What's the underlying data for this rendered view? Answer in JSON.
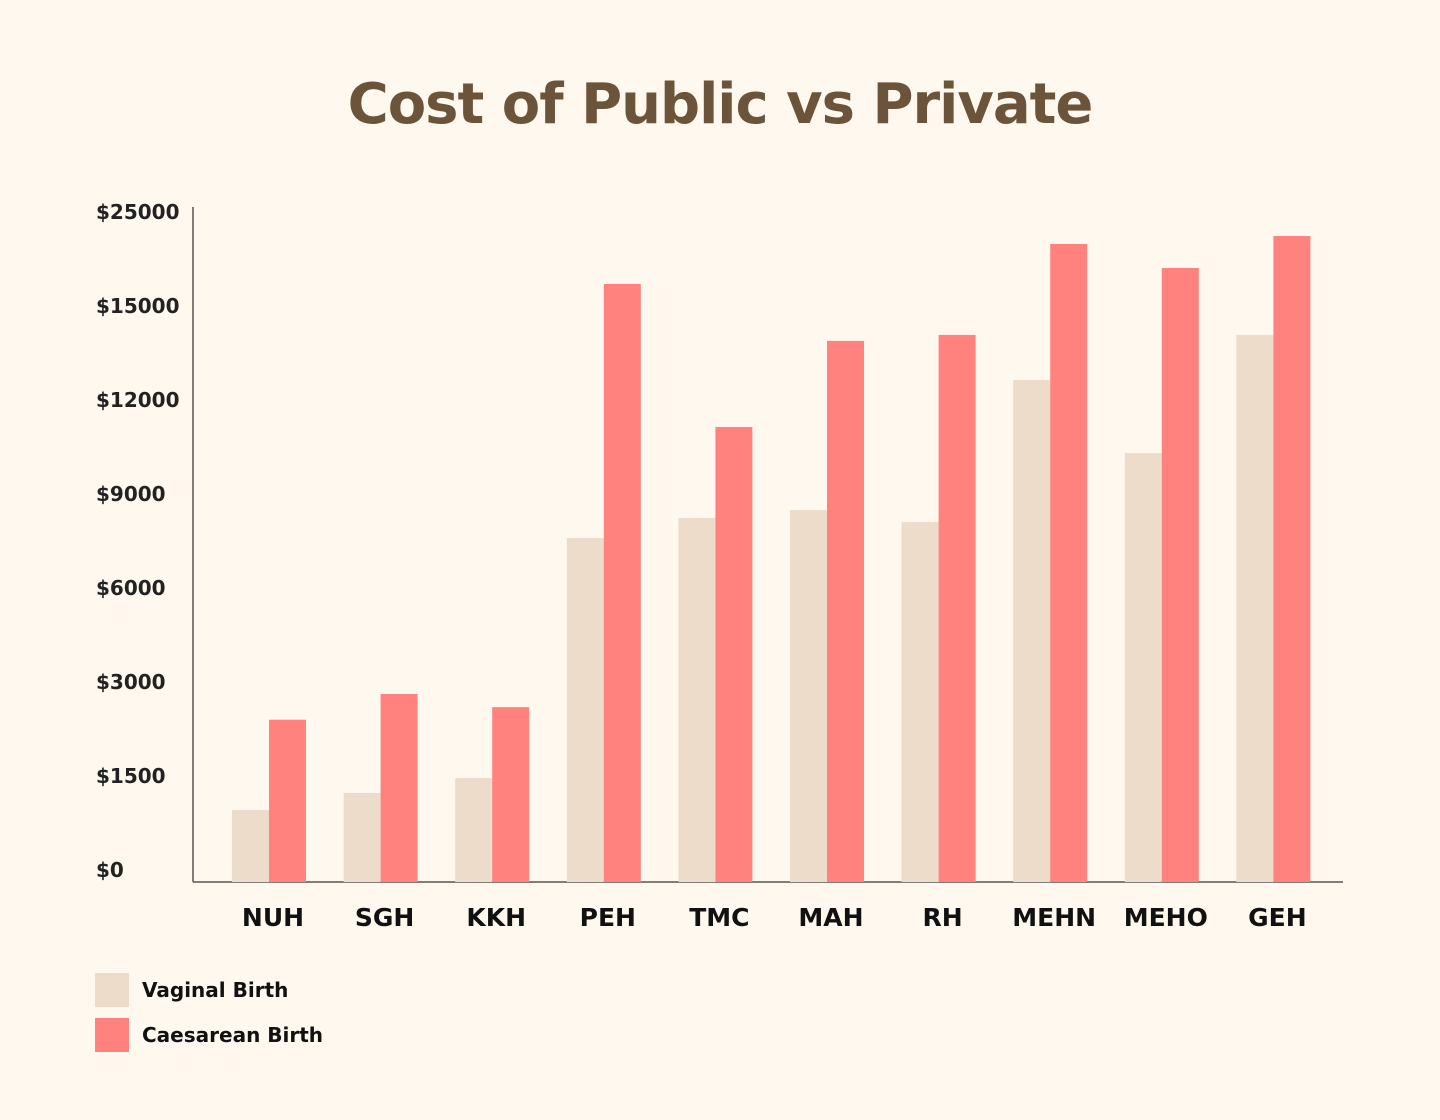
{
  "chart_data": {
    "type": "bar",
    "title": "Cost of Public vs Private",
    "xlabel": "",
    "ylabel": "",
    "categories": [
      "NUH",
      "SGH",
      "KKH",
      "PEH",
      "TMC",
      "MAH",
      "RH",
      "MEHN",
      "MEHO",
      "GEH"
    ],
    "y_ticks": [
      0,
      1500,
      3000,
      6000,
      9000,
      12000,
      15000,
      25000
    ],
    "y_tick_labels": [
      "$0",
      "$1500",
      "$3000",
      "$6000",
      "$9000",
      "$12000",
      "$15000",
      "$25000"
    ],
    "y_scale": "non-uniform (evenly spaced tick labels)",
    "ylim": [
      0,
      25000
    ],
    "grid": false,
    "legend_position": "bottom-left",
    "series": [
      {
        "name": "Vaginal Birth",
        "color": "#EDDCC9",
        "values": [
          1150,
          1420,
          1660,
          7980,
          8620,
          8870,
          8490,
          13020,
          10690,
          14460
        ]
      },
      {
        "name": "Caesarean Birth",
        "color": "#FF827E",
        "values": [
          2590,
          3000,
          2790,
          18620,
          11520,
          14270,
          14460,
          22870,
          20320,
          23720
        ]
      }
    ]
  },
  "colors": {
    "background": "#FFF8EE",
    "title": "#6B5439",
    "axis": "#555555"
  }
}
